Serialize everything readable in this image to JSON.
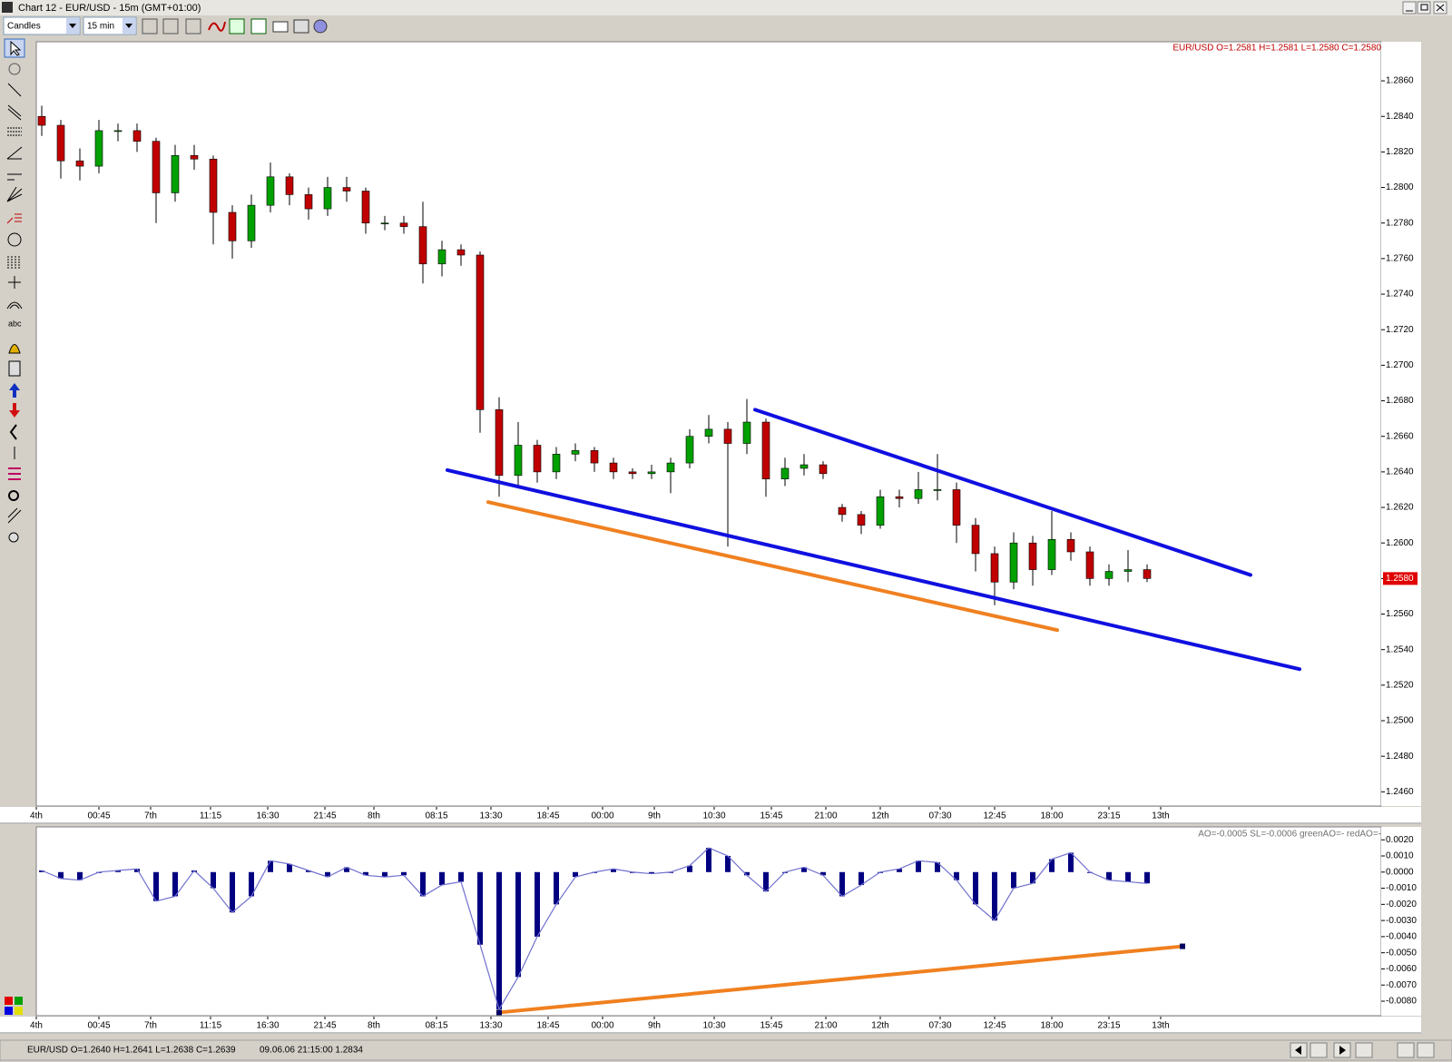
{
  "window": {
    "title": "Chart 12 - EUR/USD - 15m (GMT+01:00)"
  },
  "toolbar": {
    "chart_style": "Candles",
    "period": "15 min"
  },
  "toolbar_left": {
    "text_tool": "abc"
  },
  "status_bar": {
    "ohlc": "EUR/USD O=1.2640 H=1.2641 L=1.2638 C=1.2639",
    "datetime": "09.06.06 21:15:00 1.2834"
  },
  "chart_data": [
    {
      "type": "candlestick",
      "header": "EUR/USD O=1.2581 H=1.2581 L=1.2580 C=1.2580",
      "up_color": "#00a000",
      "down_color": "#c00000",
      "x": [
        2,
        9,
        16,
        23,
        30,
        37,
        44,
        51,
        58,
        65,
        72,
        79,
        86,
        93,
        100,
        107,
        114,
        121,
        128,
        135,
        142,
        149,
        156,
        163,
        170,
        177,
        184,
        191,
        198,
        205,
        212,
        219,
        226,
        233,
        240,
        247,
        254,
        261,
        268,
        275,
        282,
        289,
        296,
        303,
        310,
        317,
        324,
        331,
        338,
        345,
        352,
        359,
        366,
        373,
        380,
        387,
        394,
        401,
        408
      ],
      "open": [
        1.284,
        1.2835,
        1.2815,
        1.2812,
        1.2832,
        1.2832,
        1.2826,
        1.2797,
        1.2818,
        1.2816,
        1.2786,
        1.277,
        1.279,
        1.2806,
        1.2796,
        1.2788,
        1.28,
        1.2798,
        1.278,
        1.278,
        1.2778,
        1.2757,
        1.2765,
        1.2762,
        1.2675,
        1.2638,
        1.2655,
        1.264,
        1.265,
        1.2652,
        1.2645,
        1.264,
        1.2639,
        1.264,
        1.2645,
        1.266,
        1.2664,
        1.2656,
        1.2668,
        1.2636,
        1.2642,
        1.2644,
        1.262,
        1.2616,
        1.261,
        1.2626,
        1.2625,
        1.263,
        1.263,
        1.261,
        1.2594,
        1.2578,
        1.26,
        1.2585,
        1.2602,
        1.2595,
        1.258,
        1.2584,
        1.2585
      ],
      "high": [
        1.2846,
        1.2838,
        1.2822,
        1.2838,
        1.2836,
        1.2836,
        1.2828,
        1.2824,
        1.2824,
        1.2818,
        1.279,
        1.2796,
        1.2814,
        1.2808,
        1.28,
        1.2806,
        1.2806,
        1.28,
        1.2784,
        1.2784,
        1.2792,
        1.277,
        1.2768,
        1.2764,
        1.2682,
        1.2668,
        1.2658,
        1.2654,
        1.2656,
        1.2654,
        1.2648,
        1.2642,
        1.2644,
        1.2648,
        1.2664,
        1.2672,
        1.2668,
        1.2681,
        1.267,
        1.2648,
        1.265,
        1.2646,
        1.2622,
        1.2618,
        1.263,
        1.263,
        1.264,
        1.265,
        1.2634,
        1.2614,
        1.2598,
        1.2606,
        1.2604,
        1.2618,
        1.2606,
        1.2598,
        1.2588,
        1.2596,
        1.2588
      ],
      "low": [
        1.2829,
        1.2805,
        1.2804,
        1.2808,
        1.2826,
        1.282,
        1.278,
        1.2792,
        1.281,
        1.2768,
        1.276,
        1.2766,
        1.2786,
        1.279,
        1.2782,
        1.2784,
        1.2792,
        1.2774,
        1.2776,
        1.2774,
        1.2746,
        1.275,
        1.2756,
        1.2662,
        1.2626,
        1.2632,
        1.2634,
        1.2636,
        1.2646,
        1.264,
        1.2636,
        1.2636,
        1.2636,
        1.2628,
        1.2642,
        1.2656,
        1.2598,
        1.265,
        1.2626,
        1.2632,
        1.2638,
        1.2636,
        1.2612,
        1.2605,
        1.2608,
        1.262,
        1.2622,
        1.2624,
        1.26,
        1.2584,
        1.2565,
        1.2574,
        1.2576,
        1.2582,
        1.259,
        1.2576,
        1.2576,
        1.2578,
        1.2578
      ],
      "close": [
        1.2835,
        1.2815,
        1.2812,
        1.2832,
        1.2832,
        1.2826,
        1.2797,
        1.2818,
        1.2816,
        1.2786,
        1.277,
        1.279,
        1.2806,
        1.2796,
        1.2788,
        1.28,
        1.2798,
        1.278,
        1.278,
        1.2778,
        1.2757,
        1.2765,
        1.2762,
        1.2675,
        1.2638,
        1.2655,
        1.264,
        1.265,
        1.2652,
        1.2645,
        1.264,
        1.2639,
        1.264,
        1.2645,
        1.266,
        1.2664,
        1.2656,
        1.2668,
        1.2636,
        1.2642,
        1.2644,
        1.2639,
        1.2616,
        1.261,
        1.2626,
        1.2625,
        1.263,
        1.263,
        1.261,
        1.2594,
        1.2578,
        1.26,
        1.2585,
        1.2602,
        1.2595,
        1.258,
        1.2584,
        1.2585,
        1.258
      ],
      "last_price": {
        "value": 1.258,
        "label": "1.2580"
      },
      "trend_lines": [
        {
          "color": "#1010e0",
          "x": [
            264,
            446
          ],
          "values": [
            1.2675,
            1.2582
          ]
        },
        {
          "color": "#1010e0",
          "x": [
            151,
            464
          ],
          "values": [
            1.2641,
            1.2529
          ]
        },
        {
          "color": "#f08020",
          "x": [
            166,
            375
          ],
          "values": [
            1.2623,
            1.2551
          ]
        }
      ],
      "xlim": [
        0,
        494
      ],
      "ylim": [
        1.2452,
        1.2882
      ],
      "xticks": [
        {
          "value": 0,
          "label": "4th"
        },
        {
          "value": 23,
          "label": "00:45"
        },
        {
          "value": 42,
          "label": "7th"
        },
        {
          "value": 64,
          "label": "11:15"
        },
        {
          "value": 85,
          "label": "16:30"
        },
        {
          "value": 106,
          "label": "21:45"
        },
        {
          "value": 124,
          "label": "8th"
        },
        {
          "value": 147,
          "label": "08:15"
        },
        {
          "value": 167,
          "label": "13:30"
        },
        {
          "value": 188,
          "label": "18:45"
        },
        {
          "value": 208,
          "label": "00:00"
        },
        {
          "value": 227,
          "label": "9th"
        },
        {
          "value": 249,
          "label": "10:30"
        },
        {
          "value": 270,
          "label": "15:45"
        },
        {
          "value": 290,
          "label": "21:00"
        },
        {
          "value": 310,
          "label": "12th"
        },
        {
          "value": 332,
          "label": "07:30"
        },
        {
          "value": 352,
          "label": "12:45"
        },
        {
          "value": 373,
          "label": "18:00"
        },
        {
          "value": 394,
          "label": "23:15"
        },
        {
          "value": 413,
          "label": "13th"
        }
      ],
      "yticks": [
        {
          "value": 1.246,
          "label": "1.2460"
        },
        {
          "value": 1.248,
          "label": "1.2480"
        },
        {
          "value": 1.25,
          "label": "1.2500"
        },
        {
          "value": 1.252,
          "label": "1.2520"
        },
        {
          "value": 1.254,
          "label": "1.2540"
        },
        {
          "value": 1.256,
          "label": "1.2560"
        },
        {
          "value": 1.258,
          "label": "1.2580"
        },
        {
          "value": 1.26,
          "label": "1.2600"
        },
        {
          "value": 1.262,
          "label": "1.2620"
        },
        {
          "value": 1.264,
          "label": "1.2640"
        },
        {
          "value": 1.266,
          "label": "1.2660"
        },
        {
          "value": 1.268,
          "label": "1.2680"
        },
        {
          "value": 1.27,
          "label": "1.2700"
        },
        {
          "value": 1.272,
          "label": "1.2720"
        },
        {
          "value": 1.274,
          "label": "1.2740"
        },
        {
          "value": 1.276,
          "label": "1.2760"
        },
        {
          "value": 1.278,
          "label": "1.2780"
        },
        {
          "value": 1.28,
          "label": "1.2800"
        },
        {
          "value": 1.282,
          "label": "1.2820"
        },
        {
          "value": 1.284,
          "label": "1.2840"
        },
        {
          "value": 1.286,
          "label": "1.2860"
        }
      ]
    },
    {
      "type": "bar",
      "header": "AO=-0.0005 SL=-0.0006 greenAO=- redAO=-",
      "color": "#000080",
      "line_color": "#7070d0",
      "x": [
        2,
        9,
        16,
        23,
        30,
        37,
        44,
        51,
        58,
        65,
        72,
        79,
        86,
        93,
        100,
        107,
        114,
        121,
        128,
        135,
        142,
        149,
        156,
        163,
        170,
        177,
        184,
        191,
        198,
        205,
        212,
        219,
        226,
        233,
        240,
        247,
        254,
        261,
        268,
        275,
        282,
        289,
        296,
        303,
        310,
        317,
        324,
        331,
        338,
        345,
        352,
        359,
        366,
        373,
        380,
        387,
        394,
        401,
        408
      ],
      "values": [
        0.0001,
        -0.0004,
        -0.0005,
        0.0,
        0.0001,
        0.0002,
        -0.0018,
        -0.0015,
        0.0001,
        -0.001,
        -0.0025,
        -0.0015,
        0.0007,
        0.0005,
        0.0001,
        -0.0003,
        0.0003,
        -0.0002,
        -0.0003,
        -0.0002,
        -0.0015,
        -0.0008,
        -0.0006,
        -0.0045,
        -0.0085,
        -0.0065,
        -0.004,
        -0.002,
        -0.0003,
        0.0,
        0.0002,
        0.0,
        -0.0001,
        0.0,
        0.0004,
        0.0015,
        0.001,
        -0.0002,
        -0.0012,
        0.0,
        0.0003,
        -0.0002,
        -0.0015,
        -0.0008,
        0.0,
        0.0002,
        0.0007,
        0.0006,
        -0.0005,
        -0.002,
        -0.003,
        -0.001,
        -0.0007,
        0.0008,
        0.0012,
        0.0,
        -0.0005,
        -0.0006,
        -0.0007
      ],
      "trend_lines": [
        {
          "color": "#f08020",
          "x": [
            170,
            421
          ],
          "values": [
            -0.0087,
            -0.0046
          ]
        }
      ],
      "xlim": [
        0,
        494
      ],
      "ylim": [
        -0.0089,
        0.0028
      ],
      "xticks": [
        {
          "value": 0,
          "label": "4th"
        },
        {
          "value": 23,
          "label": "00:45"
        },
        {
          "value": 42,
          "label": "7th"
        },
        {
          "value": 64,
          "label": "11:15"
        },
        {
          "value": 85,
          "label": "16:30"
        },
        {
          "value": 106,
          "label": "21:45"
        },
        {
          "value": 124,
          "label": "8th"
        },
        {
          "value": 147,
          "label": "08:15"
        },
        {
          "value": 167,
          "label": "13:30"
        },
        {
          "value": 188,
          "label": "18:45"
        },
        {
          "value": 208,
          "label": "00:00"
        },
        {
          "value": 227,
          "label": "9th"
        },
        {
          "value": 249,
          "label": "10:30"
        },
        {
          "value": 270,
          "label": "15:45"
        },
        {
          "value": 290,
          "label": "21:00"
        },
        {
          "value": 310,
          "label": "12th"
        },
        {
          "value": 332,
          "label": "07:30"
        },
        {
          "value": 352,
          "label": "12:45"
        },
        {
          "value": 373,
          "label": "18:00"
        },
        {
          "value": 394,
          "label": "23:15"
        },
        {
          "value": 413,
          "label": "13th"
        }
      ],
      "yticks": [
        {
          "value": 0.002,
          "label": "0.0020"
        },
        {
          "value": 0.001,
          "label": "0.0010"
        },
        {
          "value": 0,
          "label": "0.0000"
        },
        {
          "value": -0.001,
          "label": "-0.0010"
        },
        {
          "value": -0.002,
          "label": "-0.0020"
        },
        {
          "value": -0.003,
          "label": "-0.0030"
        },
        {
          "value": -0.004,
          "label": "-0.0040"
        },
        {
          "value": -0.005,
          "label": "-0.0050"
        },
        {
          "value": -0.006,
          "label": "-0.0060"
        },
        {
          "value": -0.007,
          "label": "-0.0070"
        },
        {
          "value": -0.008,
          "label": "-0.0080"
        }
      ]
    }
  ]
}
